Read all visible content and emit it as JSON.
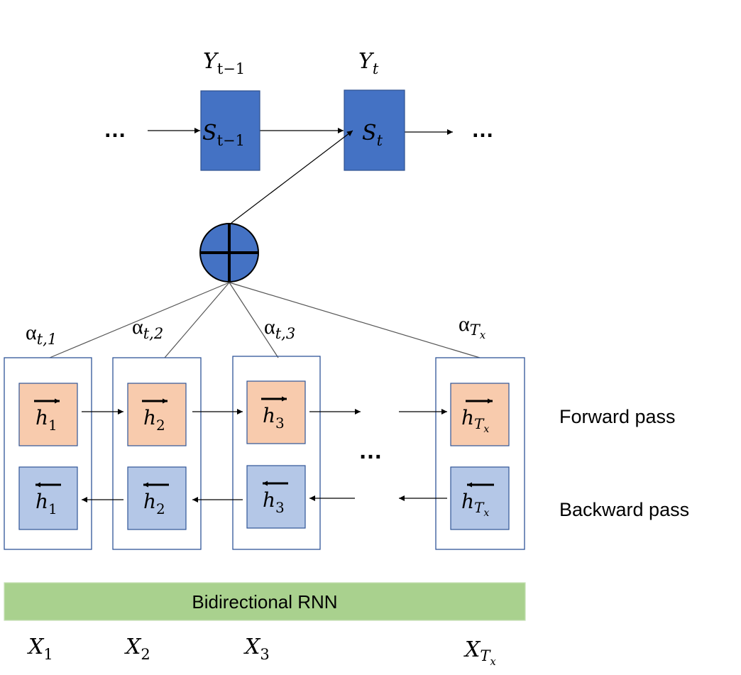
{
  "decoder": {
    "outputs": [
      {
        "base": "Y",
        "sub": "t−1"
      },
      {
        "base": "Y",
        "sub": "t"
      }
    ],
    "states": [
      {
        "base": "S",
        "sub": "t−1"
      },
      {
        "base": "S",
        "sub": "t"
      }
    ],
    "ellipsis_left": "…",
    "ellipsis_right": "…"
  },
  "attention_weights": [
    {
      "base": "α",
      "sub": "t,1"
    },
    {
      "base": "α",
      "sub": "t,2"
    },
    {
      "base": "α",
      "sub": "t,3"
    },
    {
      "base": "α",
      "sub": "T",
      "subsub": "x"
    }
  ],
  "forward_states": [
    {
      "base": "h",
      "sub": "1"
    },
    {
      "base": "h",
      "sub": "2"
    },
    {
      "base": "h",
      "sub": "3"
    },
    {
      "base": "h",
      "sub": "T",
      "subsub": "x"
    }
  ],
  "backward_states": [
    {
      "base": "h",
      "sub": "1"
    },
    {
      "base": "h",
      "sub": "2"
    },
    {
      "base": "h",
      "sub": "3"
    },
    {
      "base": "h",
      "sub": "T",
      "subsub": "x"
    }
  ],
  "encoder_ellipsis": "…",
  "pass_labels": {
    "forward": "Forward pass",
    "backward": "Backward pass"
  },
  "rnn_label": "Bidirectional RNN",
  "inputs": [
    {
      "base": "X",
      "sub": "1"
    },
    {
      "base": "X",
      "sub": "2"
    },
    {
      "base": "X",
      "sub": "3"
    },
    {
      "base": "X",
      "sub": "T",
      "subsub": "x"
    }
  ],
  "colors": {
    "decoder_fill": "#4472C4",
    "decoder_stroke": "#2F528F",
    "forward_fill": "#F8CBAD",
    "backward_fill": "#B4C7E7",
    "container_stroke": "#2F5597",
    "rnn_fill": "#A9D18E",
    "line": "#000000"
  }
}
